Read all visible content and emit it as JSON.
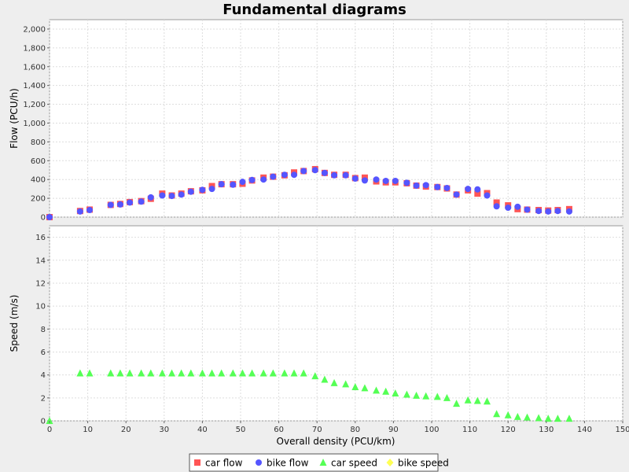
{
  "colors": {
    "background": "#eeeeee",
    "plot_background": "#ffffff",
    "grid": "#dddddd",
    "car_flow": "#ff5555",
    "bike_flow": "#5555ff",
    "car_speed": "#55ff55",
    "bike_speed": "#ffff55"
  },
  "chart_data": {
    "type": "scatter",
    "title": "Fundamental diagrams",
    "xlabel": "Overall density (PCU/km)",
    "xlim": [
      0,
      150
    ],
    "x_ticks": [
      "0",
      "10",
      "20",
      "30",
      "40",
      "50",
      "60",
      "70",
      "80",
      "90",
      "100",
      "110",
      "120",
      "130",
      "140",
      "150"
    ],
    "legend_position": "bottom",
    "grid": true,
    "subplots": [
      {
        "name": "flow",
        "ylabel": "Flow (PCU/h)",
        "ylim": [
          0,
          2100
        ],
        "y_ticks": [
          "0",
          "200",
          "400",
          "600",
          "800",
          "1,000",
          "1,200",
          "1,400",
          "1,600",
          "1,800",
          "2,000"
        ],
        "series": [
          {
            "name": "car flow",
            "marker": "square",
            "color": "#ff5555",
            "x": [
              0,
              8,
              10.5,
              16,
              18.5,
              21,
              24,
              26.5,
              29.5,
              32,
              34.5,
              37,
              40,
              42.5,
              45,
              48,
              50.5,
              53,
              56,
              58.5,
              61.5,
              64,
              66.5,
              69.5,
              72,
              74.5,
              77.5,
              80,
              82.5,
              85.5,
              88,
              90.5,
              93.5,
              96,
              98.5,
              101.5,
              104,
              106.5,
              109.5,
              112,
              114.5,
              117,
              120,
              122.5,
              125,
              128,
              130.5,
              133,
              136
            ],
            "y": [
              0,
              65,
              80,
              130,
              140,
              160,
              170,
              195,
              250,
              230,
              250,
              275,
              285,
              330,
              350,
              350,
              355,
              390,
              420,
              430,
              445,
              475,
              490,
              510,
              470,
              450,
              450,
              415,
              420,
              380,
              370,
              370,
              360,
              335,
              325,
              320,
              305,
              240,
              285,
              250,
              255,
              155,
              125,
              85,
              80,
              75,
              70,
              75,
              85
            ]
          },
          {
            "name": "bike flow",
            "marker": "circle",
            "color": "#5555ff",
            "x": [
              0,
              8,
              10.5,
              16,
              18.5,
              21,
              24,
              26.5,
              29.5,
              32,
              34.5,
              37,
              40,
              42.5,
              45,
              48,
              50.5,
              53,
              56,
              58.5,
              61.5,
              64,
              66.5,
              69.5,
              72,
              74.5,
              77.5,
              80,
              82.5,
              85.5,
              88,
              90.5,
              93.5,
              96,
              98.5,
              101.5,
              104,
              106.5,
              109.5,
              112,
              114.5,
              117,
              120,
              122.5,
              125,
              128,
              130.5,
              133,
              136
            ],
            "y": [
              0,
              60,
              75,
              130,
              135,
              155,
              165,
              210,
              230,
              225,
              240,
              270,
              290,
              300,
              350,
              345,
              375,
              395,
              400,
              430,
              450,
              450,
              490,
              500,
              470,
              445,
              445,
              410,
              390,
              400,
              385,
              385,
              365,
              335,
              340,
              320,
              310,
              240,
              300,
              295,
              230,
              115,
              100,
              110,
              80,
              65,
              60,
              65,
              60
            ]
          }
        ]
      },
      {
        "name": "speed",
        "ylabel": "Speed (m/s)",
        "ylim": [
          0,
          17
        ],
        "y_ticks": [
          "0",
          "2",
          "4",
          "6",
          "8",
          "10",
          "12",
          "14",
          "16"
        ],
        "series": [
          {
            "name": "car speed",
            "marker": "triangle",
            "color": "#55ff55",
            "x": [
              0,
              8,
              10.5,
              16,
              18.5,
              21,
              24,
              26.5,
              29.5,
              32,
              34.5,
              37,
              40,
              42.5,
              45,
              48,
              50.5,
              53,
              56,
              58.5,
              61.5,
              64,
              66.5,
              69.5,
              72,
              74.5,
              77.5,
              80,
              82.5,
              85.5,
              88,
              90.5,
              93.5,
              96,
              98.5,
              101.5,
              104,
              106.5,
              109.5,
              112,
              114.5,
              117,
              120,
              122.5,
              125,
              128,
              130.5,
              133,
              136
            ],
            "y": [
              0,
              4.15,
              4.15,
              4.15,
              4.15,
              4.15,
              4.15,
              4.15,
              4.15,
              4.15,
              4.15,
              4.15,
              4.15,
              4.15,
              4.15,
              4.15,
              4.15,
              4.15,
              4.15,
              4.15,
              4.15,
              4.15,
              4.15,
              3.9,
              3.6,
              3.3,
              3.2,
              2.95,
              2.85,
              2.65,
              2.55,
              2.4,
              2.3,
              2.2,
              2.15,
              2.1,
              2.0,
              1.5,
              1.8,
              1.75,
              1.7,
              0.6,
              0.5,
              0.35,
              0.3,
              0.25,
              0.2,
              0.2,
              0.2
            ]
          },
          {
            "name": "bike speed",
            "marker": "diamond",
            "color": "#ffff55",
            "x": [],
            "y": []
          }
        ]
      }
    ]
  }
}
